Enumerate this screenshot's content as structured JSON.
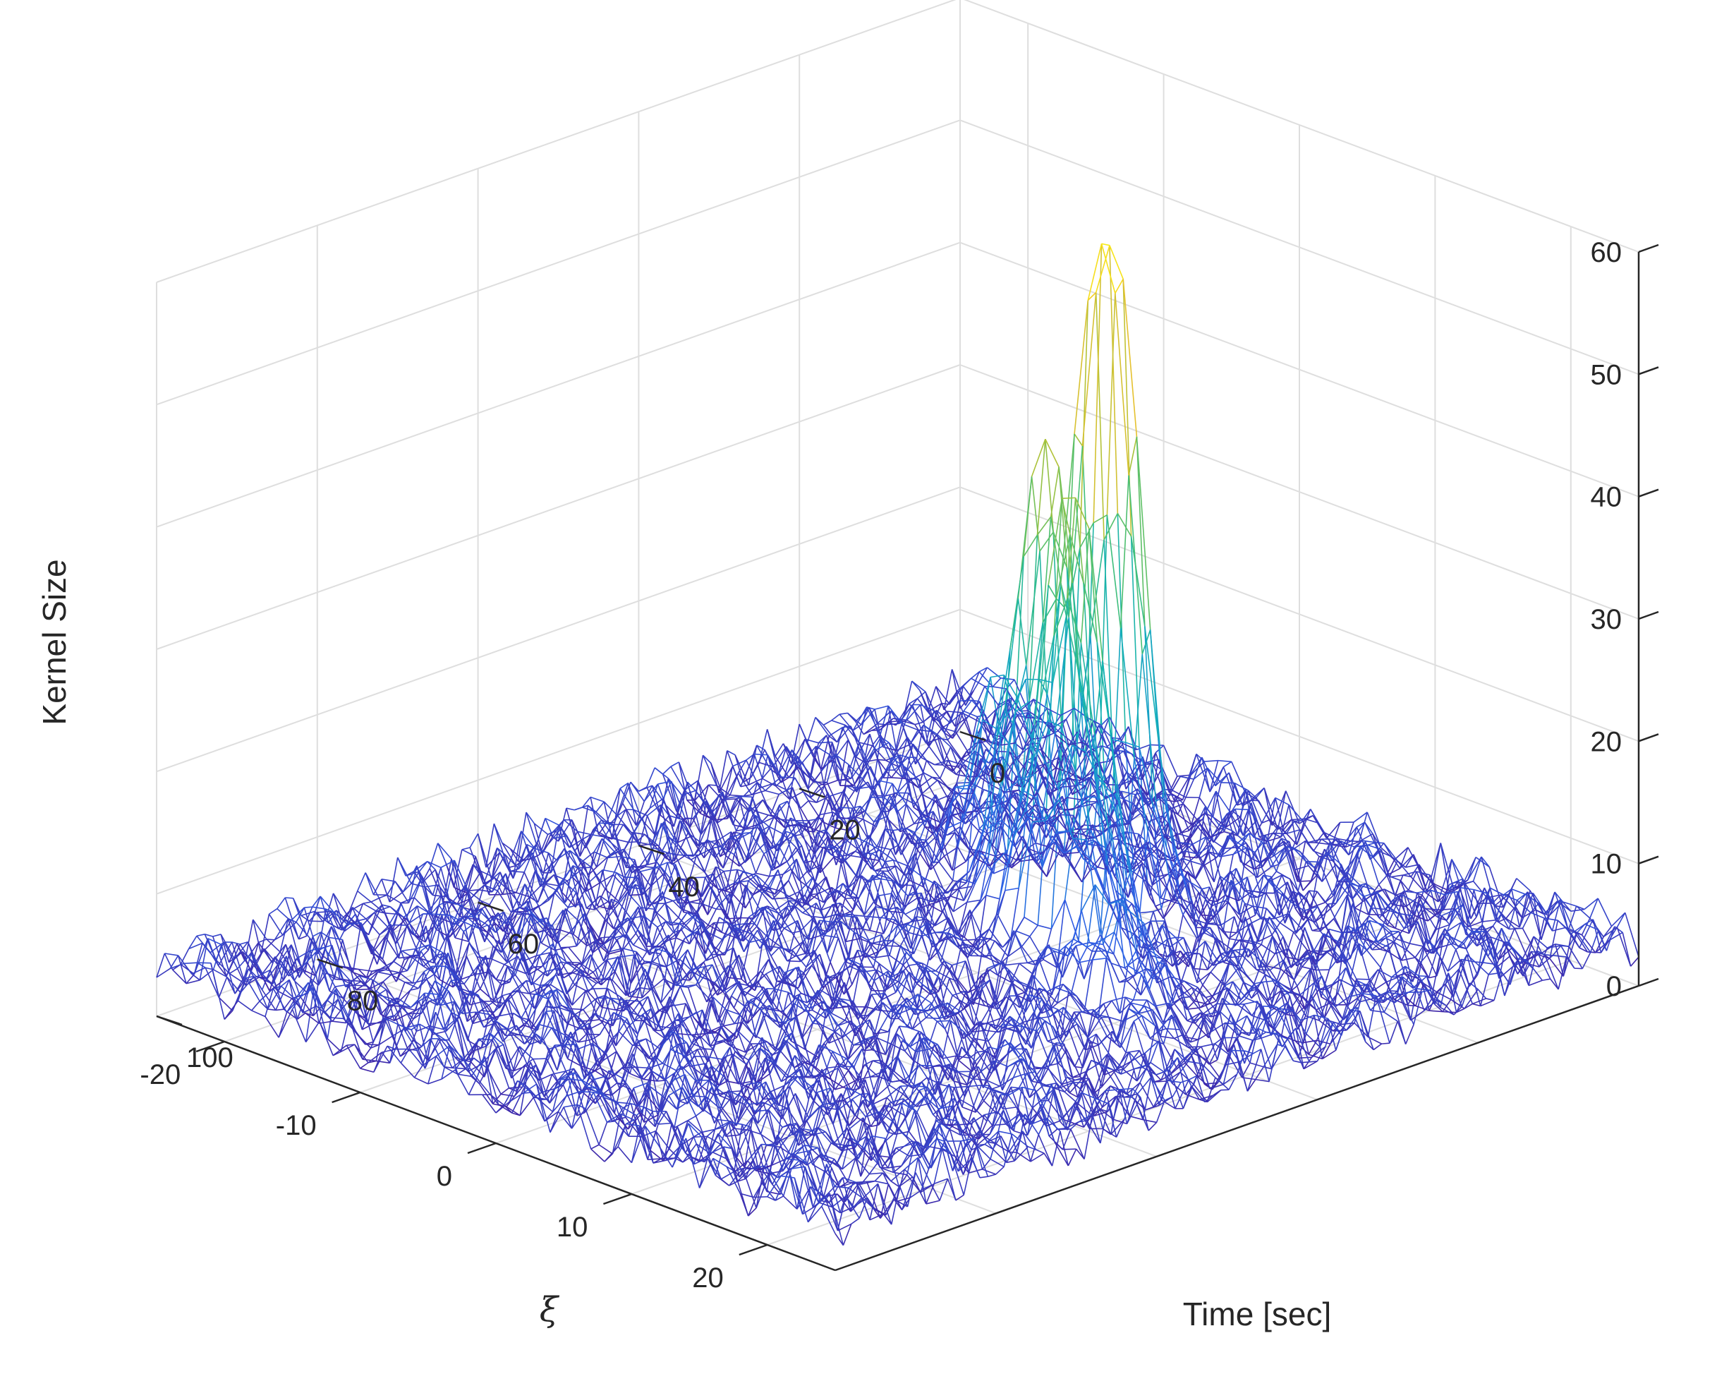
{
  "chart_data": {
    "type": "mesh",
    "title": "",
    "xlabel": "ξ",
    "ylabel": "Time [sec]",
    "zlabel": "Kernel Size",
    "xlim": [
      -25,
      25
    ],
    "ylim": [
      0,
      100
    ],
    "zlim": [
      0,
      60
    ],
    "xticks": [
      "-20",
      "-10",
      "0",
      "10",
      "20"
    ],
    "yticks": [
      "0",
      "20",
      "40",
      "60",
      "80",
      "100"
    ],
    "zticks": [
      "0",
      "10",
      "20",
      "30",
      "40",
      "50",
      "60"
    ],
    "grid": true,
    "baseline_kernel_size": 4,
    "peaks": [
      {
        "xi": 2.0,
        "time": 27.5,
        "kernel_size": 62
      },
      {
        "xi": 2.0,
        "time": 35.0,
        "kernel_size": 44
      },
      {
        "xi": 6.0,
        "time": 38.0,
        "kernel_size": 41
      },
      {
        "xi": 12.0,
        "time": 44.0,
        "kernel_size": 12
      },
      {
        "xi": -4.0,
        "time": 30.0,
        "kernel_size": 21
      }
    ],
    "colormap": [
      "#3e26a8",
      "#2f5ee6",
      "#1b91d6",
      "#13b1b5",
      "#3fbf7a",
      "#a7c23a",
      "#f3c12b",
      "#f9fb0e"
    ]
  }
}
